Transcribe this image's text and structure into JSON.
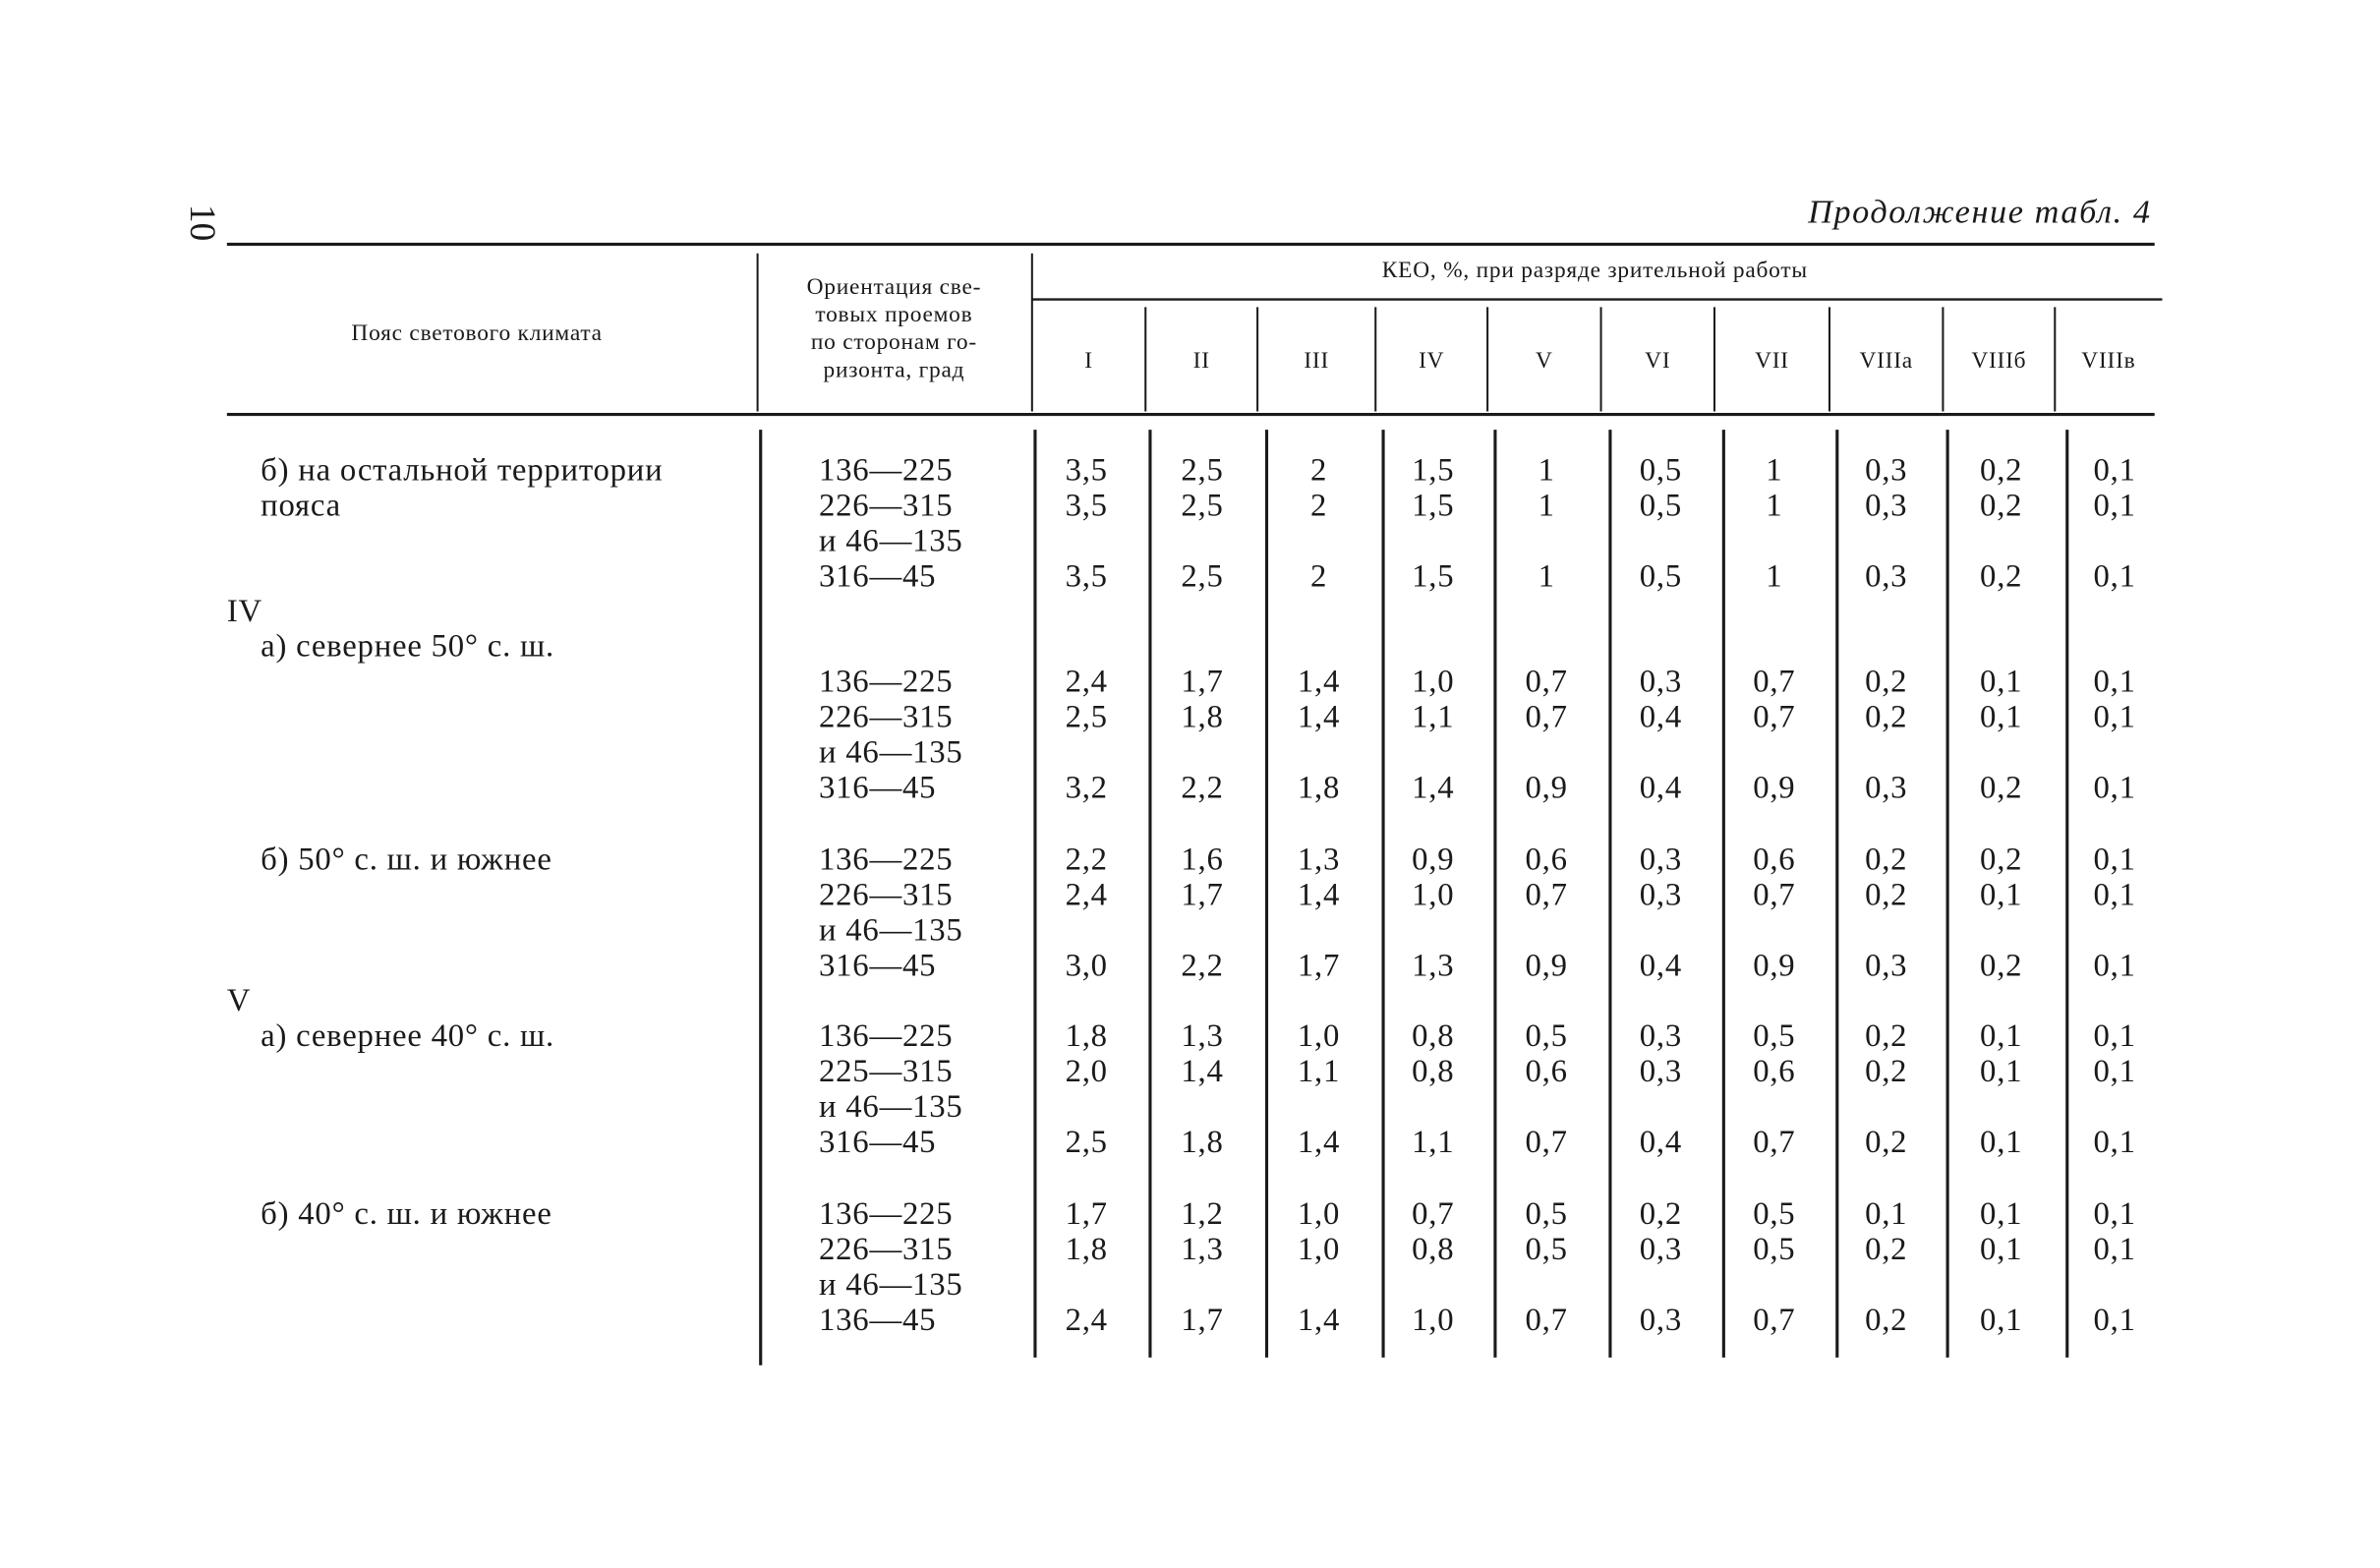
{
  "page_number": "10",
  "caption": "Продолжение табл. 4",
  "header": {
    "zone": "Пояс светового климата",
    "orientation": [
      "Ориентация све-",
      "товых проемов",
      "по сторонам го-",
      "ризонта, град"
    ],
    "keo": "КЕО, %, при разряде зрительной работы",
    "grades": [
      "I",
      "II",
      "III",
      "IV",
      "V",
      "VI",
      "VII",
      "VIIIа",
      "VIIIб",
      "VIIIв"
    ]
  },
  "body": [
    {
      "label": [
        "б) на остальной территории",
        "пояса"
      ],
      "rows": [
        {
          "orientation": [
            "136—225"
          ],
          "values": [
            "3,5",
            "2,5",
            "2",
            "1,5",
            "1",
            "0,5",
            "1",
            "0,3",
            "0,2",
            "0,1"
          ]
        },
        {
          "orientation": [
            "226—315",
            "и 46—135"
          ],
          "values": [
            "3,5",
            "2,5",
            "2",
            "1,5",
            "1",
            "0,5",
            "1",
            "0,3",
            "0,2",
            "0,1"
          ]
        },
        {
          "orientation": [
            "316—45"
          ],
          "values": [
            "3,5",
            "2,5",
            "2",
            "1,5",
            "1",
            "0,5",
            "1",
            "0,3",
            "0,2",
            "0,1"
          ]
        }
      ]
    },
    {
      "zone": "IV"
    },
    {
      "label": [
        "а) севернее 50° с. ш."
      ],
      "rows": [
        {
          "orientation": [
            "136—225"
          ],
          "values": [
            "2,4",
            "1,7",
            "1,4",
            "1,0",
            "0,7",
            "0,3",
            "0,7",
            "0,2",
            "0,1",
            "0,1"
          ]
        },
        {
          "orientation": [
            "226—315",
            "и 46—135"
          ],
          "values": [
            "2,5",
            "1,8",
            "1,4",
            "1,1",
            "0,7",
            "0,4",
            "0,7",
            "0,2",
            "0,1",
            "0,1"
          ]
        },
        {
          "orientation": [
            "316—45"
          ],
          "values": [
            "3,2",
            "2,2",
            "1,8",
            "1,4",
            "0,9",
            "0,4",
            "0,9",
            "0,3",
            "0,2",
            "0,1"
          ]
        }
      ]
    },
    {
      "label": [
        "б) 50° с. ш. и южнее"
      ],
      "rows": [
        {
          "orientation": [
            "136—225"
          ],
          "values": [
            "2,2",
            "1,6",
            "1,3",
            "0,9",
            "0,6",
            "0,3",
            "0,6",
            "0,2",
            "0,2",
            "0,1"
          ]
        },
        {
          "orientation": [
            "226—315",
            "и 46—135"
          ],
          "values": [
            "2,4",
            "1,7",
            "1,4",
            "1,0",
            "0,7",
            "0,3",
            "0,7",
            "0,2",
            "0,1",
            "0,1"
          ]
        },
        {
          "orientation": [
            "316—45"
          ],
          "values": [
            "3,0",
            "2,2",
            "1,7",
            "1,3",
            "0,9",
            "0,4",
            "0,9",
            "0,3",
            "0,2",
            "0,1"
          ]
        }
      ]
    },
    {
      "zone": "V"
    },
    {
      "label": [
        "а) севернее 40° с. ш."
      ],
      "rows": [
        {
          "orientation": [
            "136—225"
          ],
          "values": [
            "1,8",
            "1,3",
            "1,0",
            "0,8",
            "0,5",
            "0,3",
            "0,5",
            "0,2",
            "0,1",
            "0,1"
          ]
        },
        {
          "orientation": [
            "225—315",
            "и 46—135"
          ],
          "values": [
            "2,0",
            "1,4",
            "1,1",
            "0,8",
            "0,6",
            "0,3",
            "0,6",
            "0,2",
            "0,1",
            "0,1"
          ]
        },
        {
          "orientation": [
            "316—45"
          ],
          "values": [
            "2,5",
            "1,8",
            "1,4",
            "1,1",
            "0,7",
            "0,4",
            "0,7",
            "0,2",
            "0,1",
            "0,1"
          ]
        }
      ]
    },
    {
      "label": [
        "б) 40° с. ш. и южнее"
      ],
      "rows": [
        {
          "orientation": [
            "136—225"
          ],
          "values": [
            "1,7",
            "1,2",
            "1,0",
            "0,7",
            "0,5",
            "0,2",
            "0,5",
            "0,1",
            "0,1",
            "0,1"
          ]
        },
        {
          "orientation": [
            "226—315",
            "и 46—135"
          ],
          "values": [
            "1,8",
            "1,3",
            "1,0",
            "0,8",
            "0,5",
            "0,3",
            "0,5",
            "0,2",
            "0,1",
            "0,1"
          ]
        },
        {
          "orientation": [
            "136—45"
          ],
          "values": [
            "2,4",
            "1,7",
            "1,4",
            "1,0",
            "0,7",
            "0,3",
            "0,7",
            "0,2",
            "0,1",
            "0,1"
          ]
        }
      ]
    }
  ]
}
